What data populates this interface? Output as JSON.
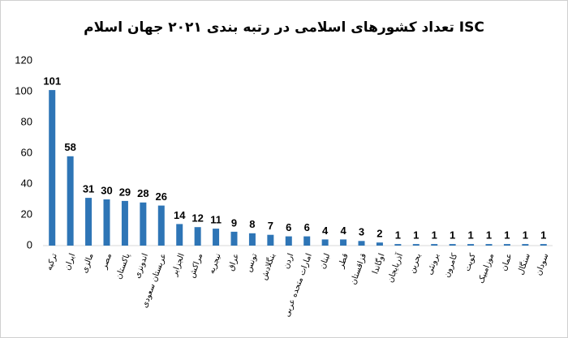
{
  "chart_data": {
    "type": "bar",
    "title": "تعداد کشورهای اسلامی در رتبه بندی ۲۰۲۱ جهان اسلام ISC",
    "categories": [
      "ترکیه",
      "ایران",
      "مالزی",
      "مصر",
      "پاکستان",
      "اندونزی",
      "عربستان سعودی",
      "الجزایر",
      "مراکش",
      "نیجریه",
      "عراق",
      "تونس",
      "بنگلادش",
      "اردن",
      "امارات متحده عربی",
      "لبنان",
      "قطر",
      "قزاقستان",
      "اوگاندا",
      "آذربایجان",
      "بحرین",
      "برونئی",
      "کامرون",
      "کویت",
      "موزامبیک",
      "عمان",
      "سنگال",
      "سودان"
    ],
    "values": [
      101,
      58,
      31,
      30,
      29,
      28,
      26,
      14,
      12,
      11,
      9,
      8,
      7,
      6,
      6,
      4,
      4,
      3,
      2,
      1,
      1,
      1,
      1,
      1,
      1,
      1,
      1,
      1
    ],
    "color": "#2e75b6",
    "ylim": [
      0,
      120
    ],
    "yticks": [
      0,
      20,
      40,
      60,
      80,
      100,
      120
    ],
    "grid": false
  }
}
